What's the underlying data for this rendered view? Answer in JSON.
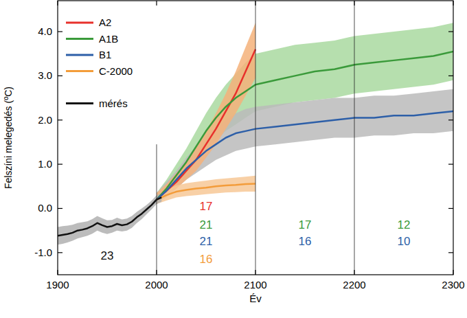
{
  "chart_data": {
    "type": "line",
    "x_label": "Év",
    "y_label": "Felszíni melegedés (ºC)",
    "xlim": [
      1900,
      2300
    ],
    "ylim": [
      -1.5,
      4.7
    ],
    "xticks": [
      1900,
      2000,
      2100,
      2200,
      2300
    ],
    "yticks": [
      {
        "value": -1,
        "label": "-1.0"
      },
      {
        "value": 0,
        "label": "0.0"
      },
      {
        "value": 1,
        "label": "1.0"
      },
      {
        "value": 2,
        "label": "2.0"
      },
      {
        "value": 3,
        "label": "3.0"
      },
      {
        "value": 4,
        "label": "4.0"
      }
    ],
    "grid": false,
    "legend": "upper left",
    "series": [
      {
        "name": "A2",
        "color": "#e8302b",
        "x": [
          2000,
          2010,
          2020,
          2030,
          2040,
          2050,
          2060,
          2070,
          2080,
          2090,
          2100
        ],
        "values": [
          0.2,
          0.4,
          0.6,
          0.85,
          1.1,
          1.45,
          1.8,
          2.2,
          2.6,
          3.1,
          3.6
        ]
      },
      {
        "name": "A1B",
        "color": "#3a9a3a",
        "x": [
          2000,
          2010,
          2020,
          2030,
          2040,
          2050,
          2060,
          2070,
          2080,
          2090,
          2100,
          2120,
          2140,
          2160,
          2180,
          2200,
          2220,
          2240,
          2260,
          2280,
          2300
        ],
        "values": [
          0.2,
          0.45,
          0.75,
          1.05,
          1.4,
          1.75,
          2.05,
          2.3,
          2.5,
          2.65,
          2.8,
          2.9,
          3.0,
          3.1,
          3.15,
          3.25,
          3.3,
          3.35,
          3.4,
          3.45,
          3.55
        ]
      },
      {
        "name": "B1",
        "color": "#2d5fa8",
        "x": [
          2000,
          2010,
          2020,
          2030,
          2040,
          2050,
          2060,
          2070,
          2080,
          2090,
          2100,
          2120,
          2140,
          2160,
          2180,
          2200,
          2220,
          2240,
          2260,
          2280,
          2300
        ],
        "values": [
          0.2,
          0.4,
          0.65,
          0.9,
          1.1,
          1.3,
          1.45,
          1.6,
          1.7,
          1.75,
          1.8,
          1.85,
          1.9,
          1.95,
          2.0,
          2.05,
          2.05,
          2.1,
          2.1,
          2.15,
          2.2
        ]
      },
      {
        "name": "C-2000",
        "color": "#f39c3a",
        "x": [
          2000,
          2010,
          2020,
          2030,
          2040,
          2050,
          2060,
          2070,
          2080,
          2090,
          2100
        ],
        "values": [
          0.2,
          0.3,
          0.38,
          0.42,
          0.45,
          0.47,
          0.5,
          0.52,
          0.53,
          0.55,
          0.56
        ]
      },
      {
        "name": "mérés",
        "color": "#111111",
        "x": [
          1900,
          1905,
          1910,
          1915,
          1920,
          1925,
          1930,
          1935,
          1940,
          1945,
          1950,
          1955,
          1960,
          1965,
          1970,
          1975,
          1980,
          1985,
          1990,
          1995,
          2000,
          2005
        ],
        "values": [
          -0.62,
          -0.6,
          -0.58,
          -0.55,
          -0.5,
          -0.48,
          -0.45,
          -0.4,
          -0.33,
          -0.38,
          -0.42,
          -0.4,
          -0.35,
          -0.38,
          -0.36,
          -0.3,
          -0.2,
          -0.12,
          -0.02,
          0.08,
          0.2,
          0.25
        ]
      }
    ],
    "bands": [
      {
        "color": "#a9d9a0",
        "x": [
          2000,
          2010,
          2020,
          2030,
          2040,
          2050,
          2060,
          2070,
          2080,
          2090,
          2100,
          2120,
          2140,
          2160,
          2180,
          2200,
          2220,
          2240,
          2260,
          2280,
          2300
        ],
        "lower": [
          0.1,
          0.3,
          0.55,
          0.8,
          1.05,
          1.3,
          1.55,
          1.75,
          1.9,
          2.05,
          2.2,
          2.3,
          2.4,
          2.45,
          2.5,
          2.6,
          2.65,
          2.7,
          2.75,
          2.8,
          2.9
        ],
        "upper": [
          0.35,
          0.65,
          1.0,
          1.35,
          1.75,
          2.15,
          2.5,
          2.8,
          3.05,
          3.3,
          3.5,
          3.6,
          3.7,
          3.75,
          3.8,
          3.9,
          3.95,
          4.0,
          4.05,
          4.1,
          4.2
        ]
      },
      {
        "color": "#bbbbbb",
        "x": [
          2000,
          2010,
          2020,
          2030,
          2040,
          2050,
          2060,
          2070,
          2080,
          2090,
          2100,
          2120,
          2140,
          2160,
          2180,
          2200,
          2220,
          2240,
          2260,
          2280,
          2300
        ],
        "lower": [
          0.1,
          0.25,
          0.45,
          0.65,
          0.8,
          0.95,
          1.1,
          1.2,
          1.3,
          1.35,
          1.4,
          1.45,
          1.5,
          1.55,
          1.6,
          1.6,
          1.65,
          1.65,
          1.7,
          1.7,
          1.75
        ],
        "upper": [
          0.35,
          0.6,
          0.85,
          1.15,
          1.4,
          1.65,
          1.85,
          2.0,
          2.15,
          2.25,
          2.3,
          2.35,
          2.4,
          2.45,
          2.5,
          2.5,
          2.55,
          2.55,
          2.6,
          2.65,
          2.7
        ]
      },
      {
        "color": "#f5b27a",
        "x": [
          2000,
          2010,
          2020,
          2030,
          2040,
          2050,
          2060,
          2070,
          2080,
          2090,
          2100
        ],
        "lower": [
          0.1,
          0.3,
          0.45,
          0.65,
          0.85,
          1.15,
          1.45,
          1.8,
          2.15,
          2.55,
          2.95
        ],
        "upper": [
          0.35,
          0.55,
          0.8,
          1.05,
          1.4,
          1.75,
          2.15,
          2.6,
          3.1,
          3.65,
          4.2
        ]
      },
      {
        "color": "#f7c896",
        "x": [
          2000,
          2010,
          2020,
          2030,
          2040,
          2050,
          2060,
          2070,
          2080,
          2090,
          2100
        ],
        "lower": [
          0.1,
          0.18,
          0.25,
          0.28,
          0.3,
          0.32,
          0.34,
          0.36,
          0.37,
          0.38,
          0.38
        ],
        "upper": [
          0.3,
          0.42,
          0.52,
          0.57,
          0.6,
          0.63,
          0.66,
          0.68,
          0.7,
          0.72,
          0.74
        ]
      },
      {
        "color": "#b0b0b0",
        "x": [
          1900,
          1905,
          1910,
          1915,
          1920,
          1925,
          1930,
          1935,
          1940,
          1945,
          1950,
          1955,
          1960,
          1965,
          1970,
          1975,
          1980,
          1985,
          1990,
          1995,
          2000,
          2005
        ],
        "lower": [
          -0.82,
          -0.8,
          -0.77,
          -0.73,
          -0.68,
          -0.65,
          -0.62,
          -0.57,
          -0.5,
          -0.55,
          -0.58,
          -0.55,
          -0.5,
          -0.52,
          -0.5,
          -0.44,
          -0.33,
          -0.24,
          -0.13,
          -0.02,
          0.1,
          0.15
        ],
        "upper": [
          -0.42,
          -0.4,
          -0.39,
          -0.37,
          -0.33,
          -0.31,
          -0.29,
          -0.24,
          -0.17,
          -0.22,
          -0.27,
          -0.26,
          -0.21,
          -0.25,
          -0.23,
          -0.17,
          -0.08,
          0.0,
          0.08,
          0.18,
          0.3,
          0.35
        ]
      }
    ],
    "vlines": [
      {
        "x": 2000,
        "ymax": 1.45
      },
      {
        "x": 2100
      },
      {
        "x": 2200
      }
    ],
    "annotations": [
      {
        "text": "23",
        "x": 1950,
        "y": -1.06,
        "color": "#111111"
      },
      {
        "text": "17",
        "x": 2050,
        "y": 0.05,
        "color": "#e8302b"
      },
      {
        "text": "21",
        "x": 2050,
        "y": -0.37,
        "color": "#3a9a3a"
      },
      {
        "text": "21",
        "x": 2050,
        "y": -0.74,
        "color": "#2d5fa8"
      },
      {
        "text": "16",
        "x": 2050,
        "y": -1.14,
        "color": "#f39c3a"
      },
      {
        "text": "17",
        "x": 2150,
        "y": -0.37,
        "color": "#3a9a3a"
      },
      {
        "text": "16",
        "x": 2150,
        "y": -0.74,
        "color": "#2d5fa8"
      },
      {
        "text": "12",
        "x": 2250,
        "y": -0.37,
        "color": "#3a9a3a"
      },
      {
        "text": "10",
        "x": 2250,
        "y": -0.74,
        "color": "#2d5fa8"
      }
    ]
  }
}
